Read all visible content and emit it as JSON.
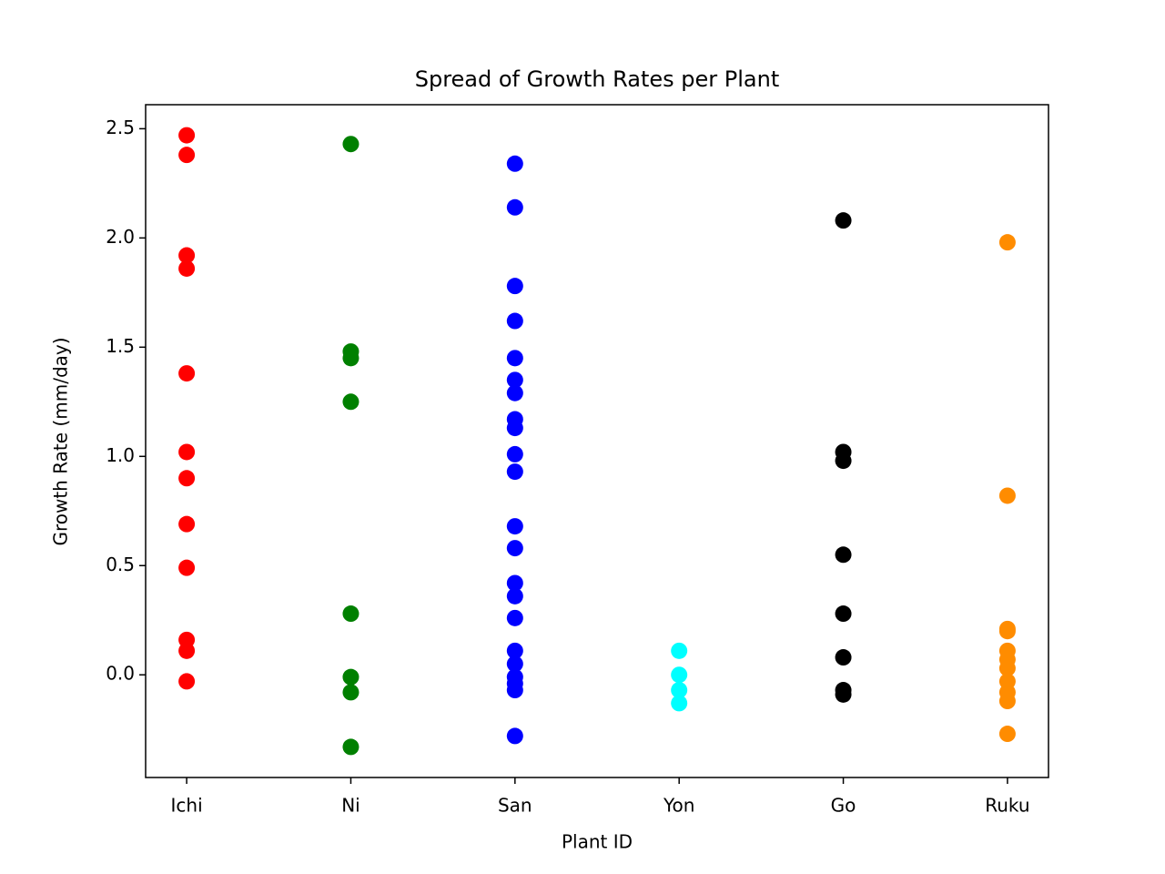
{
  "chart_data": {
    "type": "scatter",
    "title": "Spread of Growth Rates per Plant",
    "x_label": "Plant ID",
    "y_label": "Growth Rate (mm/day)",
    "categories": [
      "Ichi",
      "Ni",
      "San",
      "Yon",
      "Go",
      "Ruku"
    ],
    "colors": [
      "#ff0000",
      "#008000",
      "#0000ff",
      "#00ffff",
      "#000000",
      "#ff8c00"
    ],
    "values": [
      [
        2.47,
        2.38,
        1.92,
        1.86,
        1.38,
        1.02,
        0.9,
        0.69,
        0.49,
        0.16,
        0.11,
        -0.03
      ],
      [
        2.43,
        1.48,
        1.45,
        1.25,
        0.28,
        -0.01,
        -0.08,
        -0.33
      ],
      [
        2.34,
        2.14,
        1.78,
        1.62,
        1.45,
        1.35,
        1.29,
        1.17,
        1.13,
        1.01,
        0.93,
        0.68,
        0.58,
        0.42,
        0.36,
        0.26,
        0.11,
        0.05,
        -0.01,
        -0.04,
        -0.07,
        -0.28
      ],
      [
        0.11,
        0.0,
        -0.07,
        -0.13
      ],
      [
        2.08,
        1.02,
        0.98,
        0.55,
        0.28,
        0.08,
        -0.07,
        -0.09
      ],
      [
        1.98,
        0.82,
        0.21,
        0.2,
        0.11,
        0.07,
        0.03,
        -0.03,
        -0.08,
        -0.12,
        -0.27
      ]
    ],
    "ylim": [
      -0.47,
      2.61
    ],
    "yticks": [
      {
        "value": 0,
        "label": "0.0"
      },
      0.5,
      {
        "value": 1,
        "label": "1.0"
      },
      1.5,
      {
        "value": 2,
        "label": "2.0"
      },
      2.5
    ]
  }
}
